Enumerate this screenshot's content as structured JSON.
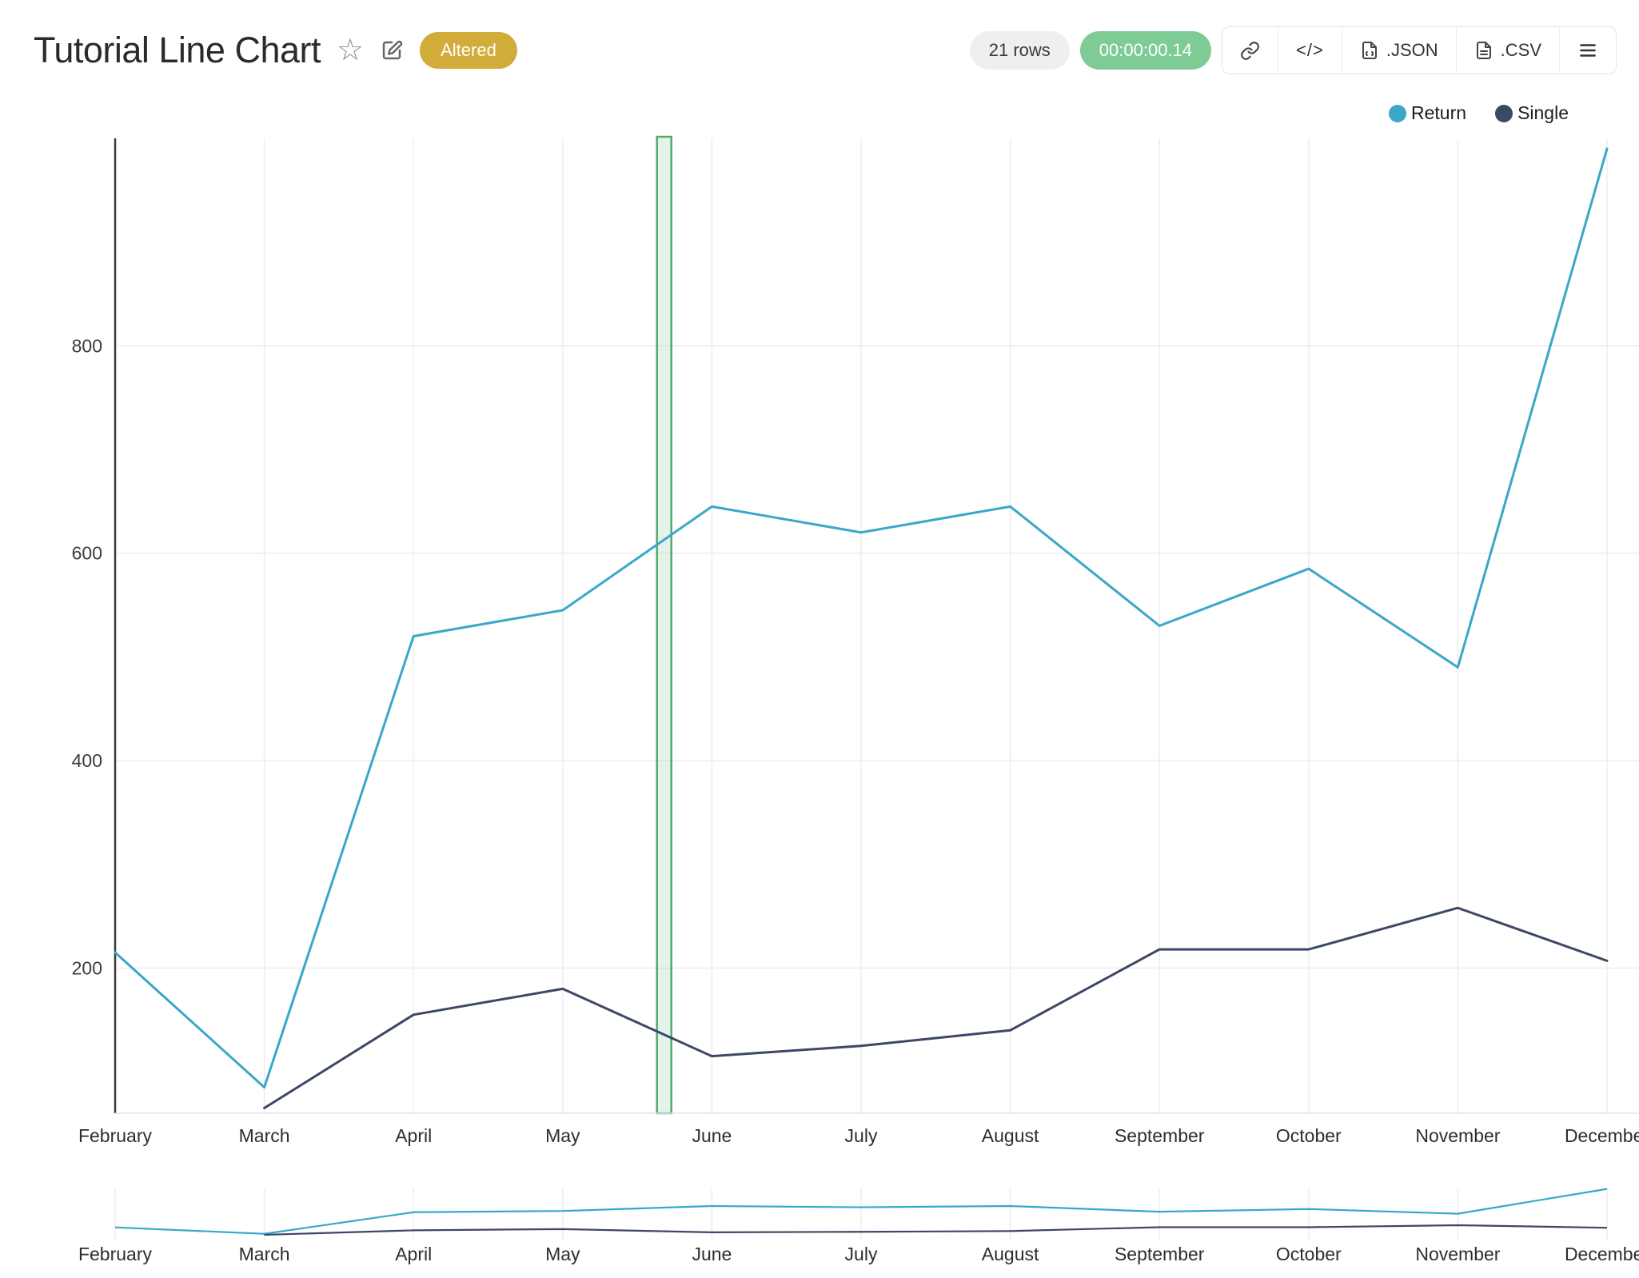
{
  "header": {
    "title": "Tutorial Line Chart",
    "altered_badge": "Altered",
    "rows_badge": "21 rows",
    "timer_badge": "00:00:00.14",
    "toolbar": {
      "code_label": "</>",
      "json_label": ".JSON",
      "csv_label": ".CSV"
    }
  },
  "legend": {
    "items": [
      {
        "label": "Return",
        "color": "#3AA7C9"
      },
      {
        "label": "Single",
        "color": "#3D4766"
      }
    ]
  },
  "chart_data": {
    "type": "line",
    "title": "Tutorial Line Chart",
    "categories": [
      "February",
      "March",
      "April",
      "May",
      "June",
      "July",
      "August",
      "September",
      "October",
      "November",
      "December"
    ],
    "series": [
      {
        "name": "Return",
        "color": "#3AA7C9",
        "values": [
          215,
          85,
          520,
          545,
          645,
          620,
          645,
          530,
          585,
          490,
          990
        ]
      },
      {
        "name": "Single",
        "color": "#3D4766",
        "values": [
          null,
          65,
          155,
          180,
          115,
          125,
          140,
          218,
          218,
          258,
          207
        ]
      }
    ],
    "ylim": [
      60,
      1000
    ],
    "yticks": [
      200,
      400,
      600,
      800
    ],
    "grid": true,
    "legend_position": "top-right",
    "selection_band": {
      "between": [
        "May",
        "June"
      ],
      "position_index": 3.68,
      "stroke": "#52A96E",
      "fill": "rgba(108,190,140,0.18)"
    },
    "mini_map": true
  },
  "colors": {
    "grid": "#ededed",
    "axis_line": "#3a3a3a",
    "tick_text": "#2e2e2e"
  }
}
